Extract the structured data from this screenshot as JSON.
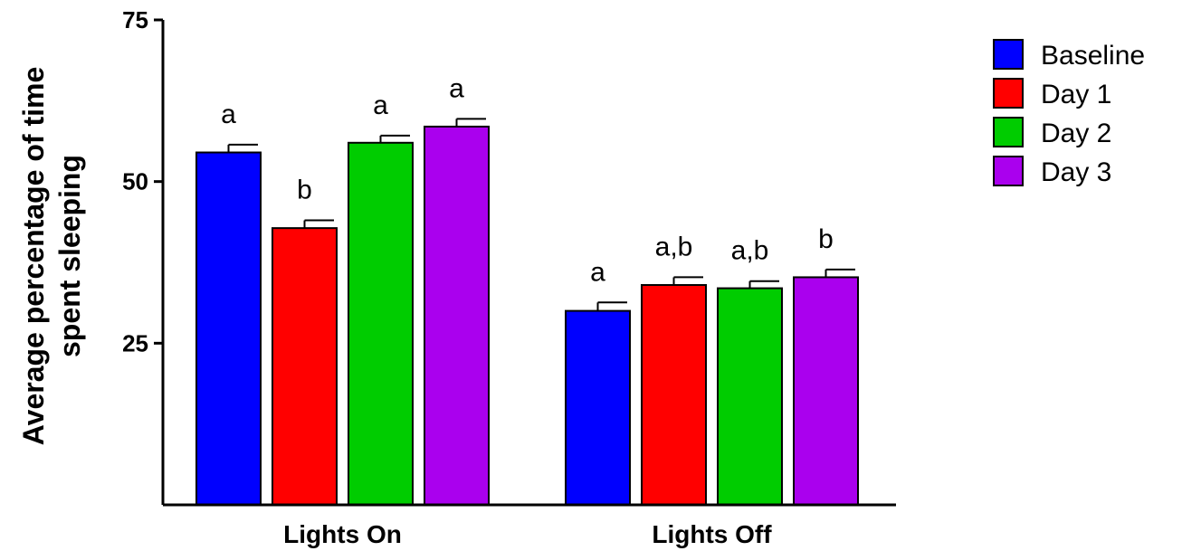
{
  "chart_data": {
    "type": "bar",
    "categories": [
      "Lights On",
      "Lights Off"
    ],
    "ylabel_lines": [
      "Average percentage of time",
      "spent sleeping"
    ],
    "xlabel": "",
    "ylim": [
      0,
      75
    ],
    "yticks": [
      25,
      50,
      75
    ],
    "ytick_labels": [
      "25",
      "50",
      "75"
    ],
    "legend_position": "top-right",
    "series": [
      {
        "name": "Baseline",
        "color": "#0000ff",
        "values": [
          54.5,
          30.0
        ],
        "errors": [
          1.2,
          1.3
        ],
        "labels": [
          "a",
          "a"
        ]
      },
      {
        "name": "Day 1",
        "color": "#ff0000",
        "values": [
          42.8,
          34.0
        ],
        "errors": [
          1.2,
          1.2
        ],
        "labels": [
          "b",
          "a,b"
        ]
      },
      {
        "name": "Day 2",
        "color": "#00cc00",
        "values": [
          56.0,
          33.5
        ],
        "errors": [
          1.1,
          1.1
        ],
        "labels": [
          "a",
          "a,b"
        ]
      },
      {
        "name": "Day 3",
        "color": "#aa00ee",
        "values": [
          58.5,
          35.2
        ],
        "errors": [
          1.2,
          1.2
        ],
        "labels": [
          "a",
          "b"
        ]
      }
    ]
  }
}
